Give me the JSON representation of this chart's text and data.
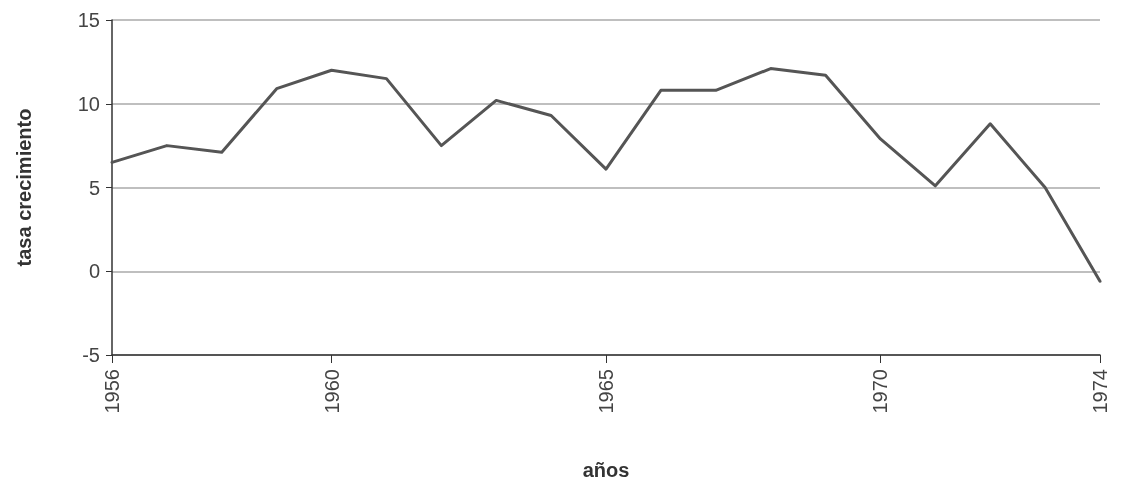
{
  "chart_data": {
    "type": "line",
    "xlabel": "años",
    "ylabel": "tasa crecimiento",
    "categories": [
      "1956",
      null,
      null,
      null,
      "1960",
      null,
      null,
      null,
      null,
      "1965",
      null,
      null,
      null,
      null,
      "1970",
      null,
      null,
      null,
      "1974"
    ],
    "series": [
      {
        "color": "#555555",
        "values": [
          6.5,
          7.5,
          7.1,
          10.9,
          12.0,
          11.5,
          7.5,
          10.2,
          9.3,
          6.1,
          10.8,
          10.8,
          12.1,
          11.7,
          7.9,
          5.1,
          8.8,
          5.0,
          -0.6
        ]
      }
    ],
    "ylim": [
      -5,
      15
    ],
    "yticks": [
      -5,
      0,
      5,
      10,
      15
    ],
    "grid": "y",
    "marker": "none",
    "line_style": "solid"
  }
}
